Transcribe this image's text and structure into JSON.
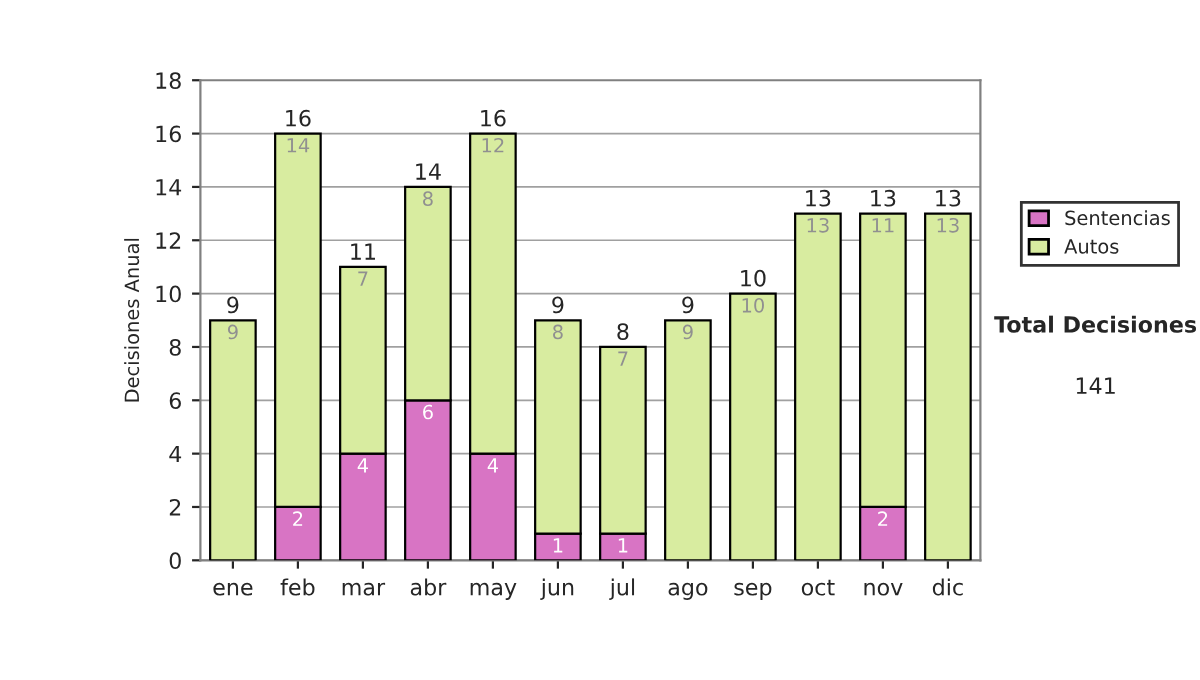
{
  "chart_data": {
    "type": "bar",
    "stacked": true,
    "ylabel": "Decisiones Anual",
    "categories": [
      "ene",
      "feb",
      "mar",
      "abr",
      "may",
      "jun",
      "jul",
      "ago",
      "sep",
      "oct",
      "nov",
      "dic"
    ],
    "series": [
      {
        "name": "Sentencias",
        "color": "#d874c4",
        "values": [
          0,
          2,
          4,
          6,
          4,
          1,
          1,
          0,
          0,
          0,
          2,
          0
        ],
        "value_labels": [
          null,
          "2",
          "4",
          "6",
          "4",
          "1",
          "1",
          null,
          null,
          null,
          "2",
          null
        ]
      },
      {
        "name": "Autos",
        "color": "#d8eca0",
        "values": [
          9,
          14,
          7,
          8,
          12,
          8,
          7,
          9,
          10,
          13,
          11,
          13
        ],
        "value_labels": [
          "9",
          "14",
          "7",
          "8",
          "12",
          "8",
          "7",
          "9",
          "10",
          "13",
          "11",
          "13"
        ]
      }
    ],
    "totals": [
      "9",
      "16",
      "11",
      "14",
      "16",
      "9",
      "8",
      "9",
      "10",
      "13",
      "13",
      "13"
    ],
    "ylim": [
      0,
      18
    ],
    "yticks": [
      0,
      2,
      4,
      6,
      8,
      10,
      12,
      14,
      16,
      18
    ],
    "grid": "y",
    "legend": "right",
    "annotations": [
      "Total Decisiones",
      "141"
    ]
  }
}
